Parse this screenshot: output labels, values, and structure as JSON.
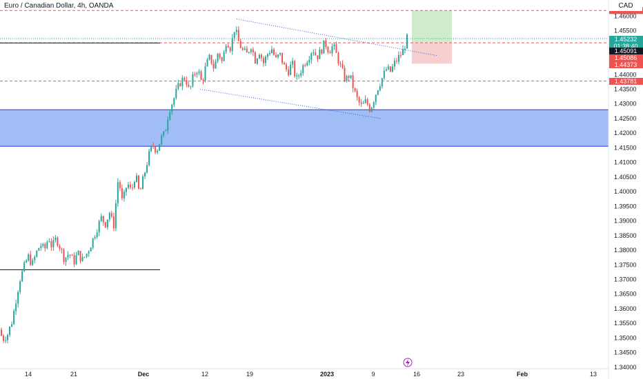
{
  "header": {
    "title": "Euro / Canadian Dollar, 4h, OANDA",
    "currency": "CAD"
  },
  "colors": {
    "up": "#26a69a",
    "down": "#ef5350",
    "zone_fill": "#a0bdf5",
    "zone_border": "#2336e8",
    "target_fill": "#cfeccd",
    "stop_fill": "#f8cfd1",
    "dashed_red": "#ef5350",
    "trendline": "#3b5bd9",
    "hline": "#131722"
  },
  "chart_data": {
    "type": "candlestick",
    "symbol": "EUR/CAD",
    "timeframe": "4h",
    "y_axis": {
      "range": [
        1.3395,
        1.4655
      ],
      "ticks": [
        "1.46000",
        "1.45500",
        "1.45000",
        "1.44500",
        "1.44000",
        "1.43500",
        "1.43000",
        "1.42500",
        "1.42000",
        "1.41500",
        "1.41000",
        "1.40500",
        "1.40000",
        "1.39500",
        "1.39000",
        "1.38500",
        "1.38000",
        "1.37500",
        "1.37000",
        "1.36500",
        "1.36000",
        "1.35500",
        "1.35000",
        "1.34500",
        "1.34000"
      ]
    },
    "x_axis": {
      "labels": [
        "14",
        "21",
        "Dec",
        "12",
        "19",
        "2023",
        "9",
        "16",
        "23",
        "Feb",
        "13"
      ]
    },
    "price_labels": [
      {
        "text": "1.45232",
        "sub": "01:38:40",
        "value": 1.45232,
        "style": "up"
      },
      {
        "text": "1.45091",
        "value": 1.45091,
        "style": "dark"
      },
      {
        "text": "1.45086",
        "value": 1.45086,
        "style": "red"
      },
      {
        "text": "1.44373",
        "value": 1.44373,
        "style": "red"
      },
      {
        "text": "1.43781",
        "value": 1.43781,
        "style": "red"
      }
    ],
    "horizontal_lines": [
      {
        "value": 1.4619,
        "style": "dashed-red"
      },
      {
        "value": 1.45086,
        "style": "dashed-red"
      },
      {
        "value": 1.43781,
        "style": "dashed-red"
      },
      {
        "value": 1.45232,
        "style": "dotted-teal"
      }
    ],
    "support_zone": {
      "from": 1.4155,
      "to": 1.428
    },
    "segments": [
      {
        "value": 1.4508,
        "style": "solid-dark"
      },
      {
        "value": 1.3733,
        "style": "solid-dark"
      }
    ],
    "position": {
      "entry": 1.45086,
      "target": 1.4619,
      "stop": 1.44373
    },
    "trendlines": [
      {
        "from": [
          17,
          1.459
        ],
        "to": [
          19.8,
          1.4465
        ]
      },
      {
        "from": [
          11.6,
          1.435
        ],
        "to": [
          8.2,
          1.425
        ]
      }
    ],
    "price_path": [
      [
        0.0,
        1.3528
      ],
      [
        0.5,
        1.3495
      ],
      [
        1.2,
        1.3512
      ],
      [
        1.9,
        1.356
      ],
      [
        2.5,
        1.364
      ],
      [
        3.0,
        1.37
      ],
      [
        3.6,
        1.374
      ],
      [
        4.2,
        1.378
      ],
      [
        4.8,
        1.375
      ],
      [
        5.4,
        1.379
      ],
      [
        6.0,
        1.382
      ],
      [
        6.6,
        1.38
      ],
      [
        7.2,
        1.3845
      ],
      [
        7.7,
        1.381
      ],
      [
        8.3,
        1.384
      ],
      [
        8.9,
        1.381
      ],
      [
        9.5,
        1.377
      ],
      [
        10.2,
        1.379
      ],
      [
        10.9,
        1.376
      ],
      [
        11.5,
        1.379
      ],
      [
        12.1,
        1.3765
      ],
      [
        12.7,
        1.3785
      ],
      [
        13.5,
        1.3825
      ],
      [
        14.2,
        1.387
      ],
      [
        14.9,
        1.391
      ],
      [
        15.5,
        1.389
      ],
      [
        16.1,
        1.393
      ],
      [
        16.7,
        1.388
      ],
      [
        17.4,
        1.405
      ],
      [
        18.0,
        1.396
      ],
      [
        18.7,
        1.403
      ],
      [
        19.3,
        1.4
      ],
      [
        19.9,
        1.406
      ],
      [
        20.5,
        1.399
      ],
      [
        21.1,
        1.405
      ],
      [
        21.8,
        1.412
      ],
      [
        22.4,
        1.416
      ],
      [
        23.0,
        1.414
      ],
      [
        23.6,
        1.418
      ],
      [
        24.2,
        1.42
      ],
      [
        24.8,
        1.428
      ],
      [
        25.4,
        1.431
      ],
      [
        26.0,
        1.435
      ],
      [
        26.6,
        1.438
      ],
      [
        27.2,
        1.439
      ],
      [
        27.8,
        1.434
      ],
      [
        28.4,
        1.44
      ],
      [
        29.0,
        1.442
      ],
      [
        29.6,
        1.437
      ],
      [
        30.2,
        1.443
      ],
      [
        30.8,
        1.446
      ],
      [
        31.4,
        1.442
      ],
      [
        32.0,
        1.448
      ],
      [
        32.6,
        1.444
      ],
      [
        33.2,
        1.452
      ],
      [
        33.8,
        1.449
      ],
      [
        34.4,
        1.456
      ],
      [
        35.0,
        1.451
      ],
      [
        35.6,
        1.448
      ],
      [
        36.2,
        1.447
      ],
      [
        36.8,
        1.45
      ],
      [
        37.4,
        1.445
      ],
      [
        38.0,
        1.448
      ],
      [
        38.6,
        1.444
      ],
      [
        39.2,
        1.447
      ],
      [
        39.8,
        1.449
      ],
      [
        40.4,
        1.445
      ],
      [
        41.0,
        1.447
      ],
      [
        41.6,
        1.443
      ],
      [
        42.2,
        1.441
      ],
      [
        42.8,
        1.444
      ],
      [
        43.4,
        1.438
      ],
      [
        44.0,
        1.441
      ],
      [
        44.6,
        1.444
      ],
      [
        45.2,
        1.446
      ],
      [
        45.8,
        1.449
      ],
      [
        46.4,
        1.446
      ],
      [
        47.0,
        1.448
      ],
      [
        47.6,
        1.451
      ],
      [
        48.2,
        1.448
      ],
      [
        48.8,
        1.45
      ],
      [
        49.4,
        1.446
      ],
      [
        50.0,
        1.442
      ],
      [
        50.6,
        1.438
      ],
      [
        51.2,
        1.44
      ],
      [
        51.8,
        1.435
      ],
      [
        52.4,
        1.431
      ],
      [
        53.0,
        1.429
      ],
      [
        53.6,
        1.431
      ],
      [
        54.2,
        1.428
      ],
      [
        54.8,
        1.432
      ],
      [
        55.4,
        1.436
      ],
      [
        56.0,
        1.439
      ],
      [
        56.6,
        1.442
      ],
      [
        57.2,
        1.441
      ],
      [
        57.8,
        1.444
      ],
      [
        58.4,
        1.446
      ],
      [
        59.0,
        1.448
      ],
      [
        59.6,
        1.4523
      ]
    ]
  }
}
